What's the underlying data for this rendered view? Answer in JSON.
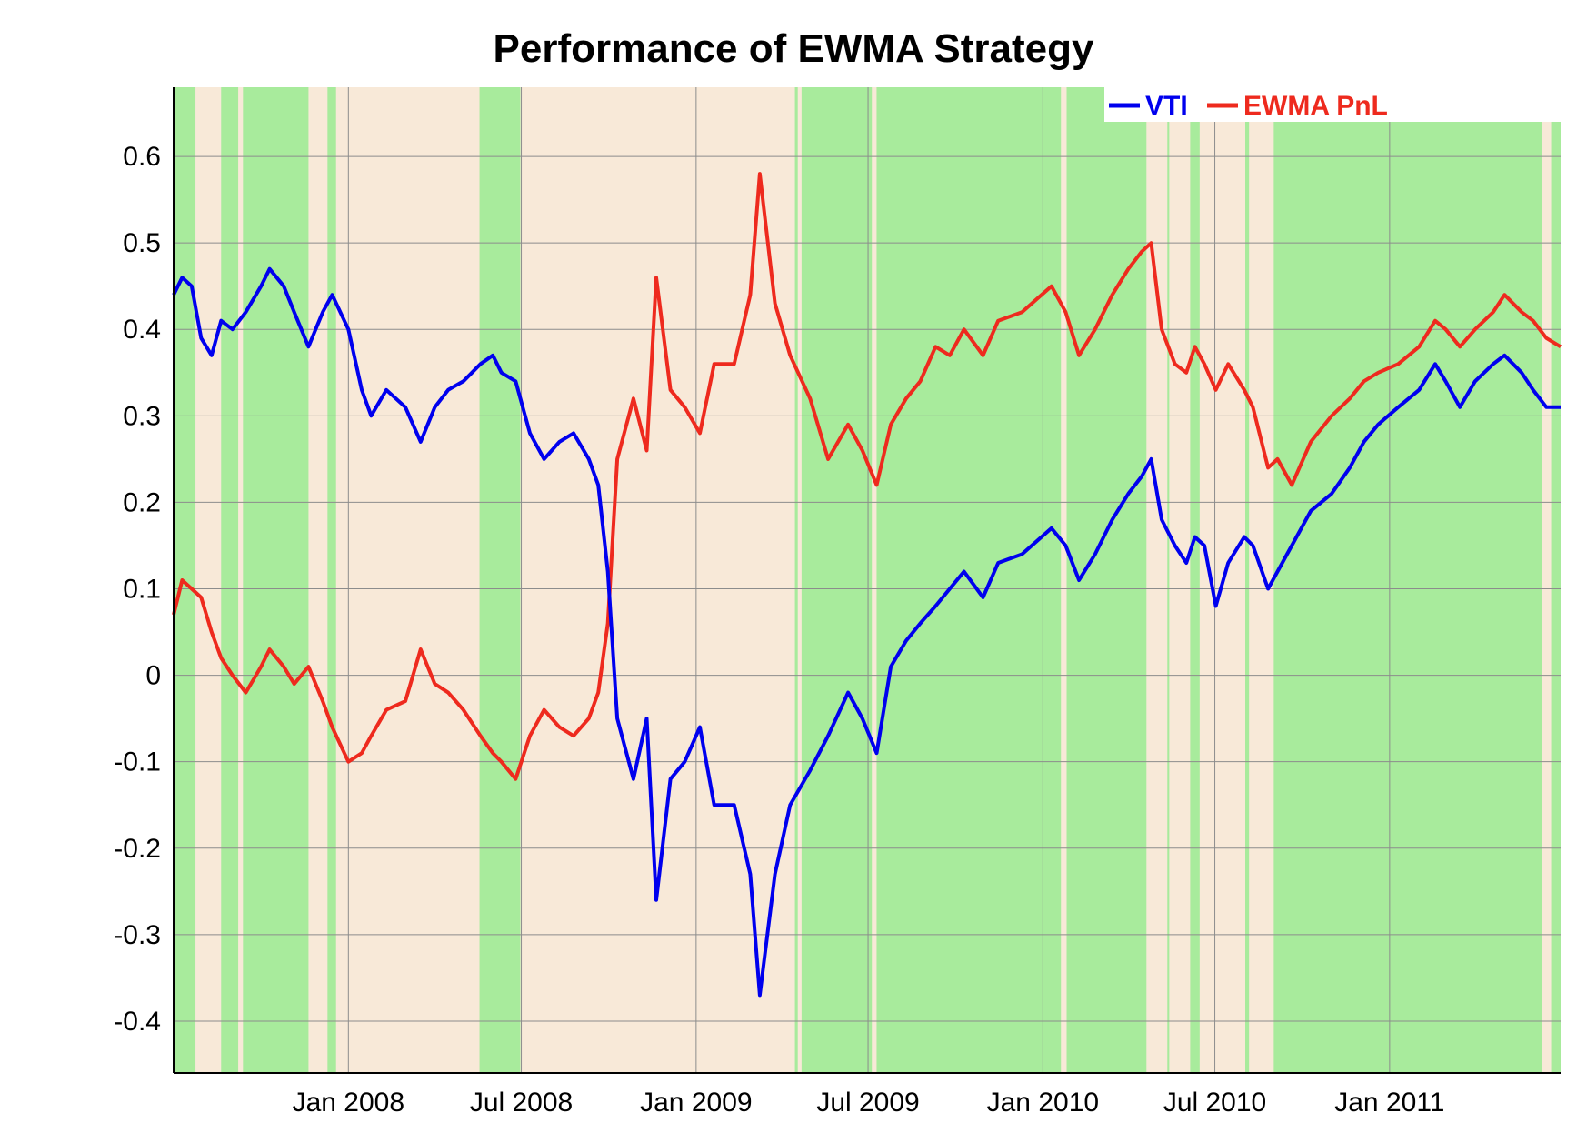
{
  "chart_data": {
    "type": "line",
    "title": "Performance of EWMA Strategy",
    "xlabel": "",
    "ylabel": "",
    "x_range": [
      "2007-07-01",
      "2011-06-30"
    ],
    "ylim": [
      -0.46,
      0.68
    ],
    "y_ticks": [
      0.6,
      0.5,
      0.4,
      0.3,
      0.2,
      0.1,
      0,
      -0.1,
      -0.2,
      -0.3,
      -0.4
    ],
    "y_tick_labels": [
      "0.6",
      "0.5",
      "0.4",
      "0.3",
      "0.2",
      "0.1",
      "0",
      "-0.1",
      "-0.2",
      "-0.3",
      "-0.4"
    ],
    "x_ticks": [
      {
        "date": "2008-01-01",
        "label": "Jan 2008"
      },
      {
        "date": "2008-07-01",
        "label": "Jul 2008"
      },
      {
        "date": "2009-01-01",
        "label": "Jan 2009"
      },
      {
        "date": "2009-07-01",
        "label": "Jul 2009"
      },
      {
        "date": "2010-01-01",
        "label": "Jan 2010"
      },
      {
        "date": "2010-07-01",
        "label": "Jul 2010"
      },
      {
        "date": "2011-01-01",
        "label": "Jan 2011"
      }
    ],
    "grid": true,
    "legend_position": "top-right",
    "background_regimes": {
      "long_color": "#a8eb9c",
      "short_color": "#f8e9d8",
      "long_periods": [
        [
          "2007-07-01",
          "2007-07-24"
        ],
        [
          "2007-08-20",
          "2007-09-07"
        ],
        [
          "2007-09-12",
          "2007-11-20"
        ],
        [
          "2007-12-10",
          "2007-12-19"
        ],
        [
          "2008-05-18",
          "2008-06-30"
        ],
        [
          "2009-04-15",
          "2009-04-18"
        ],
        [
          "2009-04-22",
          "2009-07-05"
        ],
        [
          "2009-07-10",
          "2010-01-20"
        ],
        [
          "2010-01-26",
          "2010-04-20"
        ],
        [
          "2010-05-12",
          "2010-05-14"
        ],
        [
          "2010-06-05",
          "2010-06-15"
        ],
        [
          "2010-08-02",
          "2010-08-06"
        ],
        [
          "2010-09-01",
          "2011-06-10"
        ],
        [
          "2011-06-20",
          "2011-06-30"
        ]
      ]
    },
    "series": [
      {
        "name": "VTI",
        "color": "#0000ee",
        "points": [
          [
            "2007-07-01",
            0.44
          ],
          [
            "2007-07-10",
            0.46
          ],
          [
            "2007-07-20",
            0.45
          ],
          [
            "2007-07-30",
            0.39
          ],
          [
            "2007-08-10",
            0.37
          ],
          [
            "2007-08-20",
            0.41
          ],
          [
            "2007-09-01",
            0.4
          ],
          [
            "2007-09-15",
            0.42
          ],
          [
            "2007-10-01",
            0.45
          ],
          [
            "2007-10-10",
            0.47
          ],
          [
            "2007-10-25",
            0.45
          ],
          [
            "2007-11-05",
            0.42
          ],
          [
            "2007-11-20",
            0.38
          ],
          [
            "2007-12-05",
            0.42
          ],
          [
            "2007-12-15",
            0.44
          ],
          [
            "2008-01-01",
            0.4
          ],
          [
            "2008-01-15",
            0.33
          ],
          [
            "2008-01-25",
            0.3
          ],
          [
            "2008-02-10",
            0.33
          ],
          [
            "2008-03-01",
            0.31
          ],
          [
            "2008-03-17",
            0.27
          ],
          [
            "2008-04-01",
            0.31
          ],
          [
            "2008-04-15",
            0.33
          ],
          [
            "2008-05-01",
            0.34
          ],
          [
            "2008-05-19",
            0.36
          ],
          [
            "2008-06-01",
            0.37
          ],
          [
            "2008-06-10",
            0.35
          ],
          [
            "2008-06-25",
            0.34
          ],
          [
            "2008-07-10",
            0.28
          ],
          [
            "2008-07-25",
            0.25
          ],
          [
            "2008-08-10",
            0.27
          ],
          [
            "2008-08-25",
            0.28
          ],
          [
            "2008-09-10",
            0.25
          ],
          [
            "2008-09-20",
            0.22
          ],
          [
            "2008-09-30",
            0.12
          ],
          [
            "2008-10-10",
            -0.05
          ],
          [
            "2008-10-27",
            -0.12
          ],
          [
            "2008-11-10",
            -0.05
          ],
          [
            "2008-11-20",
            -0.26
          ],
          [
            "2008-12-05",
            -0.12
          ],
          [
            "2008-12-20",
            -0.1
          ],
          [
            "2009-01-05",
            -0.06
          ],
          [
            "2009-01-20",
            -0.15
          ],
          [
            "2009-02-10",
            -0.15
          ],
          [
            "2009-02-27",
            -0.23
          ],
          [
            "2009-03-09",
            -0.37
          ],
          [
            "2009-03-25",
            -0.23
          ],
          [
            "2009-04-10",
            -0.15
          ],
          [
            "2009-05-01",
            -0.11
          ],
          [
            "2009-05-20",
            -0.07
          ],
          [
            "2009-06-10",
            -0.02
          ],
          [
            "2009-06-25",
            -0.05
          ],
          [
            "2009-07-10",
            -0.09
          ],
          [
            "2009-07-25",
            0.01
          ],
          [
            "2009-08-10",
            0.04
          ],
          [
            "2009-08-25",
            0.06
          ],
          [
            "2009-09-10",
            0.08
          ],
          [
            "2009-09-25",
            0.1
          ],
          [
            "2009-10-10",
            0.12
          ],
          [
            "2009-10-30",
            0.09
          ],
          [
            "2009-11-15",
            0.13
          ],
          [
            "2009-12-10",
            0.14
          ],
          [
            "2010-01-10",
            0.17
          ],
          [
            "2010-01-25",
            0.15
          ],
          [
            "2010-02-08",
            0.11
          ],
          [
            "2010-02-25",
            0.14
          ],
          [
            "2010-03-15",
            0.18
          ],
          [
            "2010-04-01",
            0.21
          ],
          [
            "2010-04-15",
            0.23
          ],
          [
            "2010-04-25",
            0.25
          ],
          [
            "2010-05-06",
            0.18
          ],
          [
            "2010-05-20",
            0.15
          ],
          [
            "2010-06-01",
            0.13
          ],
          [
            "2010-06-10",
            0.16
          ],
          [
            "2010-06-20",
            0.15
          ],
          [
            "2010-07-02",
            0.08
          ],
          [
            "2010-07-15",
            0.13
          ],
          [
            "2010-08-01",
            0.16
          ],
          [
            "2010-08-10",
            0.15
          ],
          [
            "2010-08-26",
            0.1
          ],
          [
            "2010-09-05",
            0.12
          ],
          [
            "2010-09-20",
            0.15
          ],
          [
            "2010-10-10",
            0.19
          ],
          [
            "2010-11-01",
            0.21
          ],
          [
            "2010-11-20",
            0.24
          ],
          [
            "2010-12-05",
            0.27
          ],
          [
            "2010-12-20",
            0.29
          ],
          [
            "2011-01-10",
            0.31
          ],
          [
            "2011-02-01",
            0.33
          ],
          [
            "2011-02-18",
            0.36
          ],
          [
            "2011-03-01",
            0.34
          ],
          [
            "2011-03-16",
            0.31
          ],
          [
            "2011-04-01",
            0.34
          ],
          [
            "2011-04-20",
            0.36
          ],
          [
            "2011-05-02",
            0.37
          ],
          [
            "2011-05-20",
            0.35
          ],
          [
            "2011-06-01",
            0.33
          ],
          [
            "2011-06-15",
            0.31
          ],
          [
            "2011-06-30",
            0.31
          ]
        ]
      },
      {
        "name": "EWMA PnL",
        "color": "#ee2a1e",
        "points": [
          [
            "2007-07-01",
            0.07
          ],
          [
            "2007-07-10",
            0.11
          ],
          [
            "2007-07-20",
            0.1
          ],
          [
            "2007-07-30",
            0.09
          ],
          [
            "2007-08-10",
            0.05
          ],
          [
            "2007-08-20",
            0.02
          ],
          [
            "2007-09-01",
            0.0
          ],
          [
            "2007-09-15",
            -0.02
          ],
          [
            "2007-10-01",
            0.01
          ],
          [
            "2007-10-10",
            0.03
          ],
          [
            "2007-10-25",
            0.01
          ],
          [
            "2007-11-05",
            -0.01
          ],
          [
            "2007-11-20",
            0.01
          ],
          [
            "2007-12-05",
            -0.03
          ],
          [
            "2007-12-15",
            -0.06
          ],
          [
            "2008-01-01",
            -0.1
          ],
          [
            "2008-01-15",
            -0.09
          ],
          [
            "2008-01-25",
            -0.07
          ],
          [
            "2008-02-10",
            -0.04
          ],
          [
            "2008-03-01",
            -0.03
          ],
          [
            "2008-03-17",
            0.03
          ],
          [
            "2008-04-01",
            -0.01
          ],
          [
            "2008-04-15",
            -0.02
          ],
          [
            "2008-05-01",
            -0.04
          ],
          [
            "2008-05-19",
            -0.07
          ],
          [
            "2008-06-01",
            -0.09
          ],
          [
            "2008-06-10",
            -0.1
          ],
          [
            "2008-06-25",
            -0.12
          ],
          [
            "2008-07-10",
            -0.07
          ],
          [
            "2008-07-25",
            -0.04
          ],
          [
            "2008-08-10",
            -0.06
          ],
          [
            "2008-08-25",
            -0.07
          ],
          [
            "2008-09-10",
            -0.05
          ],
          [
            "2008-09-20",
            -0.02
          ],
          [
            "2008-09-30",
            0.06
          ],
          [
            "2008-10-10",
            0.25
          ],
          [
            "2008-10-27",
            0.32
          ],
          [
            "2008-11-10",
            0.26
          ],
          [
            "2008-11-20",
            0.46
          ],
          [
            "2008-12-05",
            0.33
          ],
          [
            "2008-12-20",
            0.31
          ],
          [
            "2009-01-05",
            0.28
          ],
          [
            "2009-01-20",
            0.36
          ],
          [
            "2009-02-10",
            0.36
          ],
          [
            "2009-02-27",
            0.44
          ],
          [
            "2009-03-09",
            0.58
          ],
          [
            "2009-03-25",
            0.43
          ],
          [
            "2009-04-10",
            0.37
          ],
          [
            "2009-05-01",
            0.32
          ],
          [
            "2009-05-20",
            0.25
          ],
          [
            "2009-06-10",
            0.29
          ],
          [
            "2009-06-25",
            0.26
          ],
          [
            "2009-07-10",
            0.22
          ],
          [
            "2009-07-25",
            0.29
          ],
          [
            "2009-08-10",
            0.32
          ],
          [
            "2009-08-25",
            0.34
          ],
          [
            "2009-09-10",
            0.38
          ],
          [
            "2009-09-25",
            0.37
          ],
          [
            "2009-10-10",
            0.4
          ],
          [
            "2009-10-30",
            0.37
          ],
          [
            "2009-11-15",
            0.41
          ],
          [
            "2009-12-10",
            0.42
          ],
          [
            "2010-01-10",
            0.45
          ],
          [
            "2010-01-25",
            0.42
          ],
          [
            "2010-02-08",
            0.37
          ],
          [
            "2010-02-25",
            0.4
          ],
          [
            "2010-03-15",
            0.44
          ],
          [
            "2010-04-01",
            0.47
          ],
          [
            "2010-04-15",
            0.49
          ],
          [
            "2010-04-25",
            0.5
          ],
          [
            "2010-05-06",
            0.4
          ],
          [
            "2010-05-20",
            0.36
          ],
          [
            "2010-06-01",
            0.35
          ],
          [
            "2010-06-10",
            0.38
          ],
          [
            "2010-06-20",
            0.36
          ],
          [
            "2010-07-02",
            0.33
          ],
          [
            "2010-07-15",
            0.36
          ],
          [
            "2010-08-01",
            0.33
          ],
          [
            "2010-08-10",
            0.31
          ],
          [
            "2010-08-26",
            0.24
          ],
          [
            "2010-09-05",
            0.25
          ],
          [
            "2010-09-20",
            0.22
          ],
          [
            "2010-10-10",
            0.27
          ],
          [
            "2010-11-01",
            0.3
          ],
          [
            "2010-11-20",
            0.32
          ],
          [
            "2010-12-05",
            0.34
          ],
          [
            "2010-12-20",
            0.35
          ],
          [
            "2011-01-10",
            0.36
          ],
          [
            "2011-02-01",
            0.38
          ],
          [
            "2011-02-18",
            0.41
          ],
          [
            "2011-03-01",
            0.4
          ],
          [
            "2011-03-16",
            0.38
          ],
          [
            "2011-04-01",
            0.4
          ],
          [
            "2011-04-20",
            0.42
          ],
          [
            "2011-05-02",
            0.44
          ],
          [
            "2011-05-20",
            0.42
          ],
          [
            "2011-06-01",
            0.41
          ],
          [
            "2011-06-15",
            0.39
          ],
          [
            "2011-06-30",
            0.38
          ]
        ]
      }
    ]
  }
}
